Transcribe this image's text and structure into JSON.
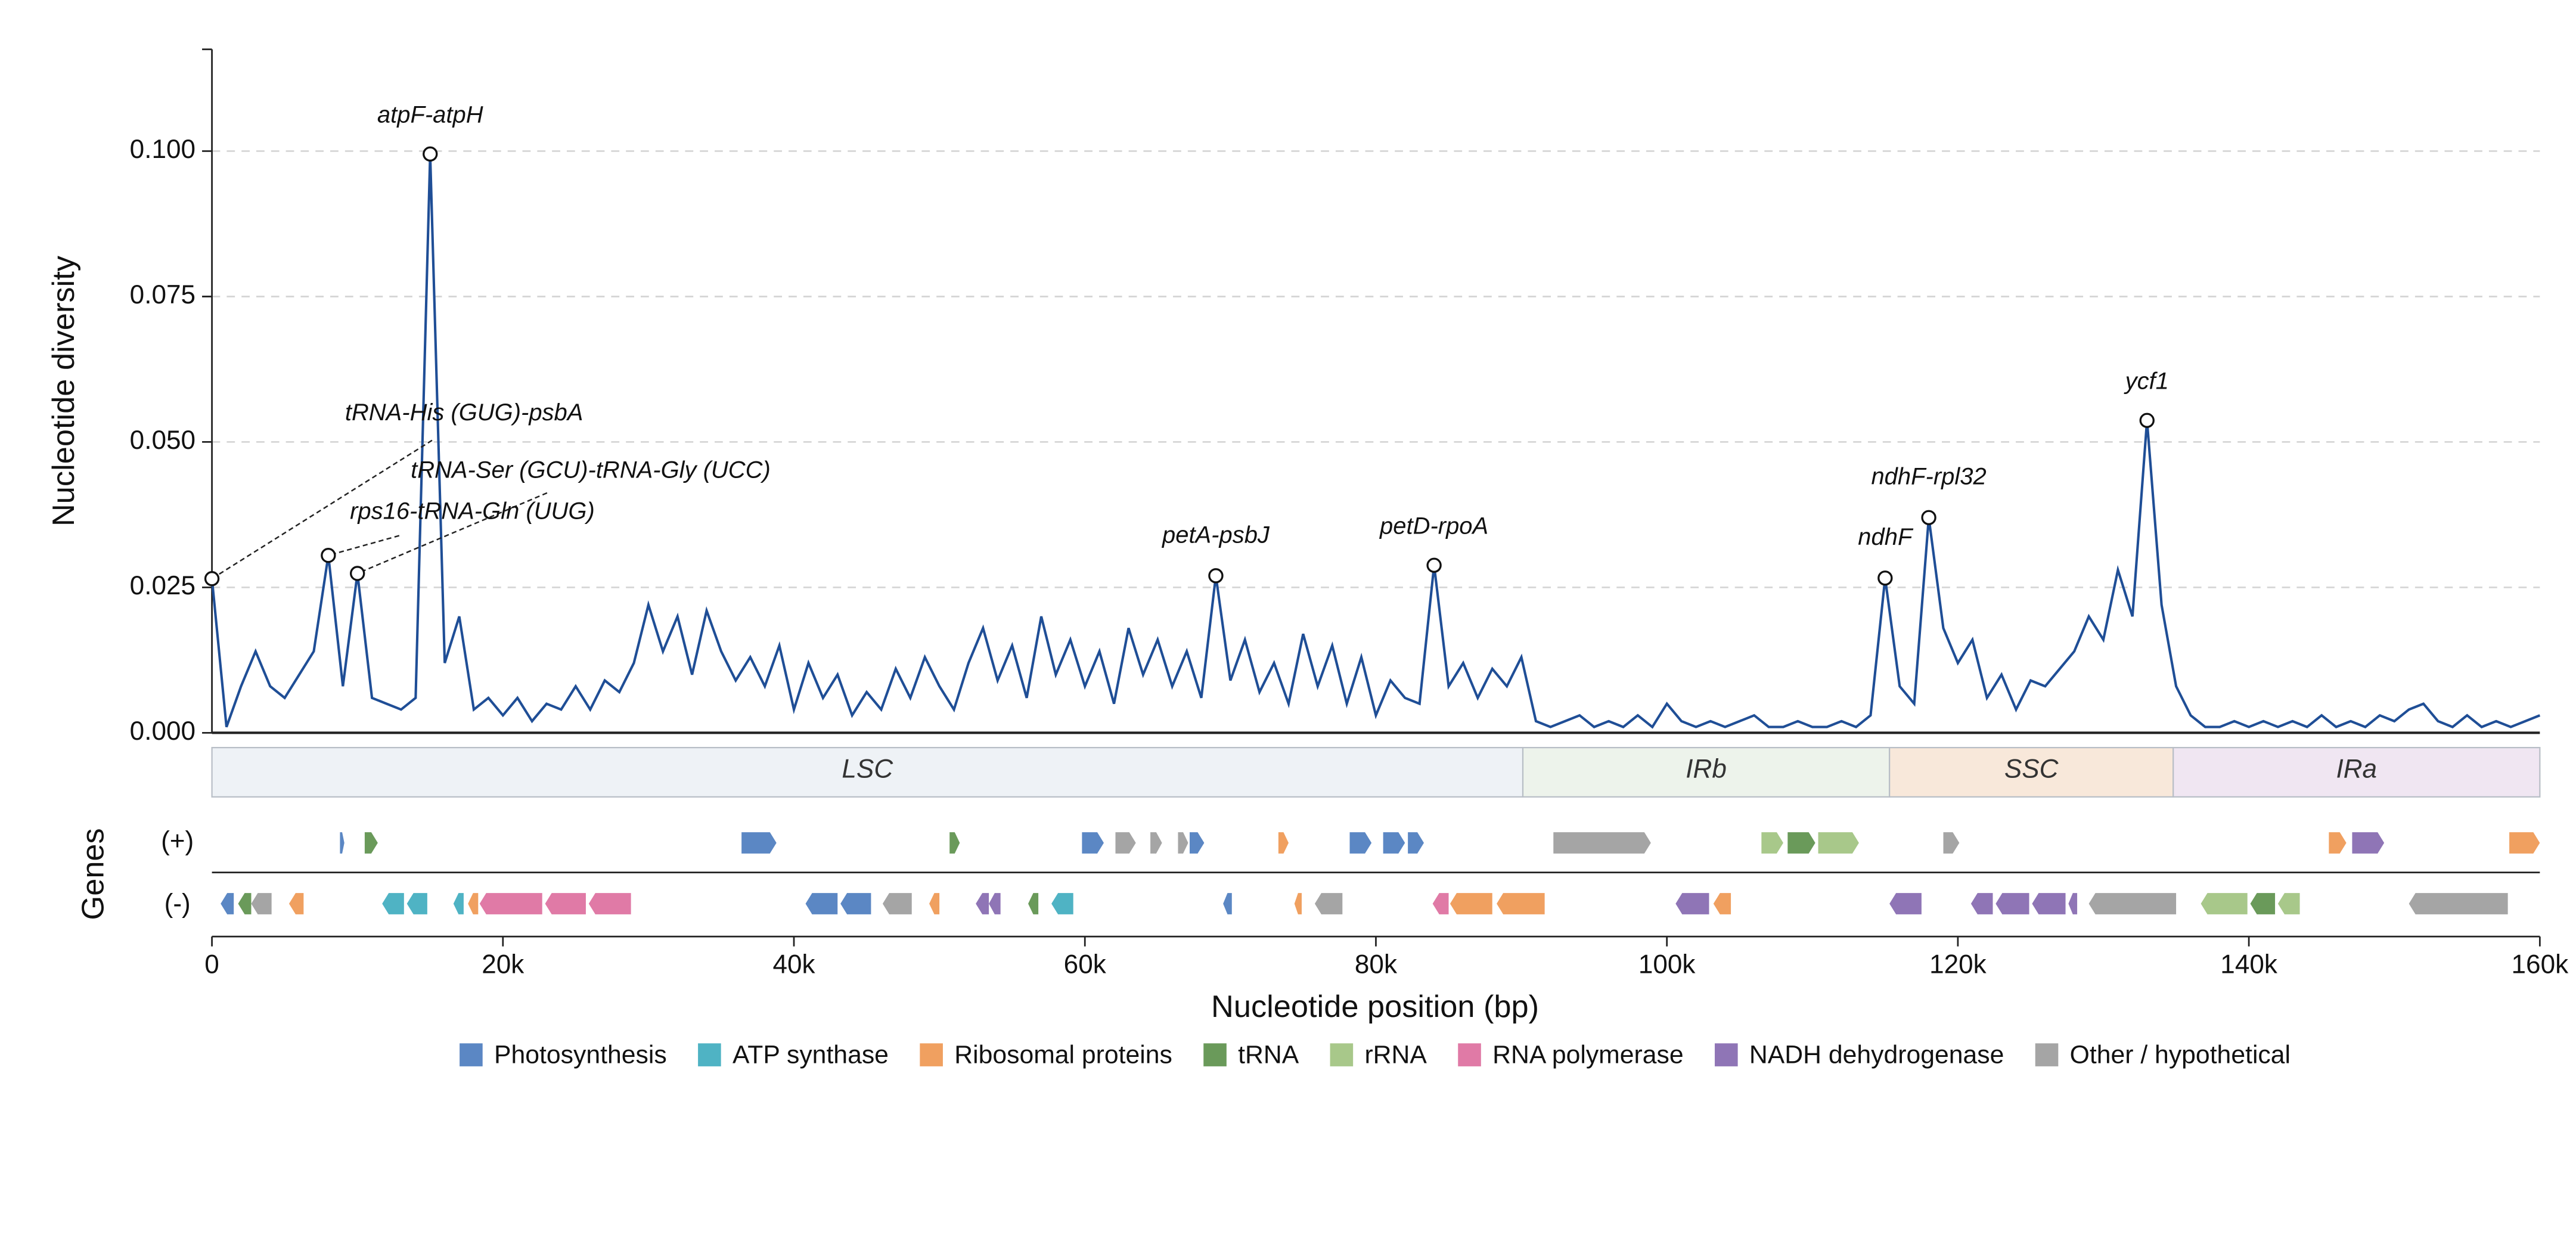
{
  "chart_data": {
    "type": "line",
    "y_label": "Nucleotide diversity",
    "x_label": "Nucleotide position (bp)",
    "color": "#1f4e96",
    "xlim": [
      0,
      160000
    ],
    "xticks": [
      0,
      {
        "value": 20000,
        "label": "20k"
      },
      {
        "value": 40000,
        "label": "40k"
      },
      {
        "value": 60000,
        "label": "60k"
      },
      {
        "value": 80000,
        "label": "80k"
      },
      {
        "value": 100000,
        "label": "100k"
      },
      {
        "value": 120000,
        "label": "120k"
      },
      {
        "value": 140000,
        "label": "140k"
      },
      {
        "value": 160000,
        "label": "160k"
      }
    ],
    "ylim": [
      0,
      0.1175
    ],
    "yticks": [
      {
        "value": 0,
        "label": "0.000"
      },
      0.025,
      {
        "value": 0.05,
        "label": "0.050"
      },
      0.075,
      {
        "value": 0.1,
        "label": "0.100"
      }
    ],
    "grid": true,
    "x": [
      0,
      1000,
      2000,
      3000,
      4000,
      5000,
      6000,
      7000,
      8000,
      9000,
      10000,
      11000,
      12000,
      13000,
      14000,
      15000,
      16000,
      17000,
      18000,
      19000,
      20000,
      21000,
      22000,
      23000,
      24000,
      25000,
      26000,
      27000,
      28000,
      29000,
      30000,
      31000,
      32000,
      33000,
      34000,
      35000,
      36000,
      37000,
      38000,
      39000,
      40000,
      41000,
      42000,
      43000,
      44000,
      45000,
      46000,
      47000,
      48000,
      49000,
      50000,
      51000,
      52000,
      53000,
      54000,
      55000,
      56000,
      57000,
      58000,
      59000,
      60000,
      61000,
      62000,
      63000,
      64000,
      65000,
      66000,
      67000,
      68000,
      69000,
      70000,
      71000,
      72000,
      73000,
      74000,
      75000,
      76000,
      77000,
      78000,
      79000,
      80000,
      81000,
      82000,
      83000,
      84000,
      85000,
      86000,
      87000,
      88000,
      89000,
      90000,
      91000,
      92000,
      93000,
      94000,
      95000,
      96000,
      97000,
      98000,
      99000,
      100000,
      101000,
      102000,
      103000,
      104000,
      105000,
      106000,
      107000,
      108000,
      109000,
      110000,
      111000,
      112000,
      113000,
      114000,
      115000,
      116000,
      117000,
      118000,
      119000,
      120000,
      121000,
      122000,
      123000,
      124000,
      125000,
      126000,
      127000,
      128000,
      129000,
      130000,
      131000,
      132000,
      133000,
      134000,
      135000,
      136000,
      137000,
      138000,
      139000,
      140000,
      141000,
      142000,
      143000,
      144000,
      145000,
      146000,
      147000,
      148000,
      149000,
      150000,
      151000,
      152000,
      153000,
      154000,
      155000,
      156000,
      157000,
      158000,
      159000,
      160000
    ],
    "values": [
      0.0265,
      0.001,
      0.008,
      0.014,
      0.008,
      0.006,
      0.01,
      0.014,
      0.0305,
      0.008,
      0.0274,
      0.006,
      0.005,
      0.004,
      0.006,
      0.0995,
      0.012,
      0.02,
      0.004,
      0.006,
      0.003,
      0.006,
      0.002,
      0.005,
      0.004,
      0.008,
      0.004,
      0.009,
      0.007,
      0.012,
      0.022,
      0.014,
      0.02,
      0.01,
      0.021,
      0.014,
      0.009,
      0.013,
      0.008,
      0.015,
      0.004,
      0.012,
      0.006,
      0.01,
      0.003,
      0.007,
      0.004,
      0.011,
      0.006,
      0.013,
      0.008,
      0.004,
      0.012,
      0.018,
      0.009,
      0.015,
      0.006,
      0.02,
      0.01,
      0.016,
      0.008,
      0.014,
      0.005,
      0.018,
      0.01,
      0.016,
      0.008,
      0.014,
      0.006,
      0.027,
      0.009,
      0.016,
      0.007,
      0.012,
      0.005,
      0.017,
      0.008,
      0.015,
      0.005,
      0.013,
      0.003,
      0.009,
      0.006,
      0.005,
      0.0288,
      0.008,
      0.012,
      0.006,
      0.011,
      0.008,
      0.013,
      0.002,
      0.001,
      0.002,
      0.003,
      0.001,
      0.002,
      0.001,
      0.003,
      0.001,
      0.005,
      0.002,
      0.001,
      0.002,
      0.001,
      0.002,
      0.003,
      0.001,
      0.001,
      0.002,
      0.001,
      0.001,
      0.002,
      0.001,
      0.003,
      0.0266,
      0.008,
      0.005,
      0.037,
      0.018,
      0.012,
      0.016,
      0.006,
      0.01,
      0.004,
      0.009,
      0.008,
      0.011,
      0.014,
      0.02,
      0.016,
      0.028,
      0.02,
      0.0537,
      0.022,
      0.008,
      0.003,
      0.001,
      0.001,
      0.002,
      0.001,
      0.002,
      0.001,
      0.002,
      0.001,
      0.003,
      0.001,
      0.002,
      0.001,
      0.003,
      0.002,
      0.004,
      0.005,
      0.002,
      0.001,
      0.003,
      0.001,
      0.002,
      0.001,
      0.002,
      0.003
    ],
    "annotations": [
      {
        "text": "atpF-atpH",
        "x": 15000,
        "y": 0.0995
      },
      {
        "text": "tRNA-His (GUG)-psbA",
        "x": 0,
        "y": 0.0265
      },
      {
        "text": "tRNA-Ser (GCU)-tRNA-Gly (UCC)",
        "x": 10000,
        "y": 0.0274
      },
      {
        "text": "rps16-tRNA-Gln (UUG)",
        "x": 8000,
        "y": 0.0305
      },
      {
        "text": "petA-psbJ",
        "x": 69000,
        "y": 0.027
      },
      {
        "text": "petD-rpoA",
        "x": 84000,
        "y": 0.0288
      },
      {
        "text": "ndhF",
        "x": 115000,
        "y": 0.0266
      },
      {
        "text": "ndhF-rpl32",
        "x": 118000,
        "y": 0.037
      },
      {
        "text": "ycf1",
        "x": 133000,
        "y": 0.0537
      }
    ],
    "regions": [
      {
        "label": "LSC",
        "start": 0,
        "end": 90100,
        "color": "#eef2f6"
      },
      {
        "label": "IRb",
        "start": 90100,
        "end": 115300,
        "color": "#edf3eb"
      },
      {
        "label": "SSC",
        "start": 115300,
        "end": 134800,
        "color": "#f8e8da"
      },
      {
        "label": "IRa",
        "start": 134800,
        "end": 160000,
        "color": "#f0e6f2"
      }
    ],
    "genes_label": "Genes",
    "strands": [
      "(+)",
      "(-)"
    ],
    "legend": [
      {
        "name": "Photosynthesis",
        "color": "#5b87c4"
      },
      {
        "name": "ATP synthase",
        "color": "#4fb3c4"
      },
      {
        "name": "Ribosomal proteins",
        "color": "#f0a060"
      },
      {
        "name": "tRNA",
        "color": "#6a9a5a"
      },
      {
        "name": "rRNA",
        "color": "#a8c88a"
      },
      {
        "name": "RNA polymerase",
        "color": "#e07aa6"
      },
      {
        "name": "NADH dehydrogenase",
        "color": "#8f75b6"
      },
      {
        "name": "Other / hypothetical",
        "color": "#a5a5a5"
      }
    ],
    "genes": {
      "plus": [
        {
          "start": 8800,
          "end": 9100,
          "group": 0
        },
        {
          "start": 10500,
          "end": 11400,
          "group": 3
        },
        {
          "start": 36400,
          "end": 38800,
          "group": 0
        },
        {
          "start": 50700,
          "end": 51400,
          "group": 3
        },
        {
          "start": 59800,
          "end": 61300,
          "group": 0
        },
        {
          "start": 62100,
          "end": 63500,
          "group": 7
        },
        {
          "start": 64500,
          "end": 65300,
          "group": 7
        },
        {
          "start": 66400,
          "end": 67100,
          "group": 7
        },
        {
          "start": 67200,
          "end": 68200,
          "group": 0
        },
        {
          "start": 73300,
          "end": 74000,
          "group": 2
        },
        {
          "start": 78200,
          "end": 79700,
          "group": 0
        },
        {
          "start": 80500,
          "end": 82000,
          "group": 0
        },
        {
          "start": 82200,
          "end": 83300,
          "group": 0
        },
        {
          "start": 92200,
          "end": 98900,
          "group": 7
        },
        {
          "start": 106500,
          "end": 108000,
          "group": 4
        },
        {
          "start": 108300,
          "end": 110200,
          "group": 3
        },
        {
          "start": 110400,
          "end": 113200,
          "group": 4
        },
        {
          "start": 119000,
          "end": 120100,
          "group": 7
        },
        {
          "start": 145500,
          "end": 146700,
          "group": 2
        },
        {
          "start": 147100,
          "end": 149300,
          "group": 6
        },
        {
          "start": 157900,
          "end": 160000,
          "group": 2
        }
      ],
      "minus": [
        {
          "start": 600,
          "end": 1500,
          "group": 0
        },
        {
          "start": 1800,
          "end": 2700,
          "group": 3
        },
        {
          "start": 2700,
          "end": 4100,
          "group": 7
        },
        {
          "start": 5300,
          "end": 6300,
          "group": 2
        },
        {
          "start": 11700,
          "end": 13200,
          "group": 1
        },
        {
          "start": 13400,
          "end": 14800,
          "group": 1
        },
        {
          "start": 16600,
          "end": 17300,
          "group": 1
        },
        {
          "start": 17600,
          "end": 18300,
          "group": 2
        },
        {
          "start": 18400,
          "end": 22700,
          "group": 5
        },
        {
          "start": 22900,
          "end": 25700,
          "group": 5
        },
        {
          "start": 25900,
          "end": 28800,
          "group": 5
        },
        {
          "start": 40800,
          "end": 43000,
          "group": 0
        },
        {
          "start": 43200,
          "end": 45300,
          "group": 0
        },
        {
          "start": 46100,
          "end": 48100,
          "group": 7
        },
        {
          "start": 49300,
          "end": 50000,
          "group": 2
        },
        {
          "start": 52500,
          "end": 53400,
          "group": 6
        },
        {
          "start": 53400,
          "end": 54200,
          "group": 6
        },
        {
          "start": 56100,
          "end": 56800,
          "group": 3
        },
        {
          "start": 57700,
          "end": 59200,
          "group": 1
        },
        {
          "start": 69500,
          "end": 70100,
          "group": 0
        },
        {
          "start": 74400,
          "end": 74900,
          "group": 2
        },
        {
          "start": 75800,
          "end": 77700,
          "group": 7
        },
        {
          "start": 83900,
          "end": 85000,
          "group": 5
        },
        {
          "start": 85100,
          "end": 88000,
          "group": 2
        },
        {
          "start": 88300,
          "end": 91600,
          "group": 2
        },
        {
          "start": 100600,
          "end": 102900,
          "group": 6
        },
        {
          "start": 103200,
          "end": 104400,
          "group": 2
        },
        {
          "start": 115300,
          "end": 117500,
          "group": 6
        },
        {
          "start": 120900,
          "end": 122400,
          "group": 6
        },
        {
          "start": 122600,
          "end": 124900,
          "group": 6
        },
        {
          "start": 125100,
          "end": 127400,
          "group": 6
        },
        {
          "start": 127600,
          "end": 128200,
          "group": 6
        },
        {
          "start": 129000,
          "end": 135000,
          "group": 7
        },
        {
          "start": 136700,
          "end": 139900,
          "group": 4
        },
        {
          "start": 140100,
          "end": 141800,
          "group": 3
        },
        {
          "start": 142000,
          "end": 143500,
          "group": 4
        },
        {
          "start": 151000,
          "end": 157800,
          "group": 7
        }
      ]
    }
  }
}
